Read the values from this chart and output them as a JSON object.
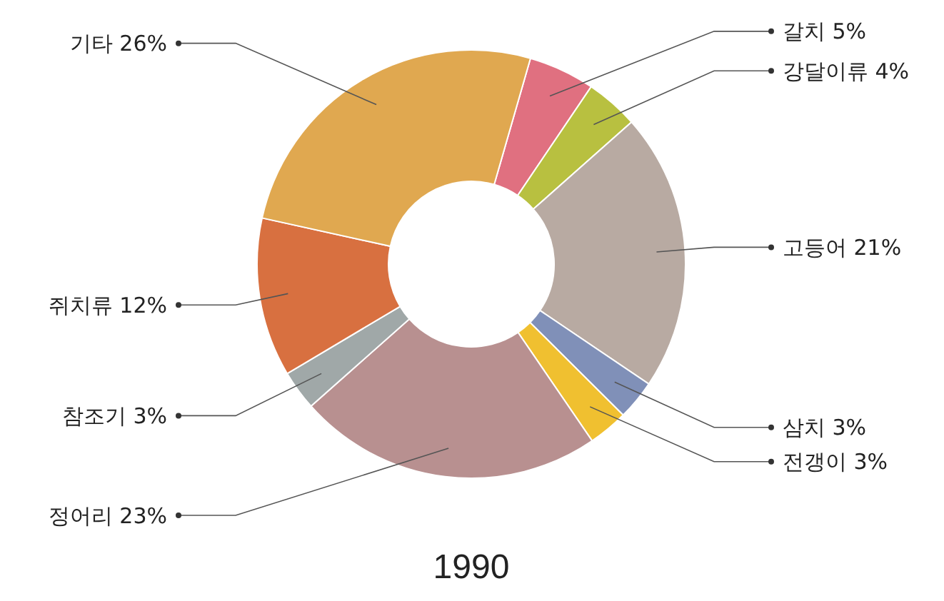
{
  "chart_data": {
    "type": "donut",
    "title": "1990",
    "categories": [
      "갈치",
      "강달이류",
      "고등어",
      "삼치",
      "전갱이",
      "정어리",
      "참조기",
      "쥐치류",
      "기타"
    ],
    "values": [
      5,
      4,
      21,
      3,
      3,
      23,
      3,
      12,
      26
    ],
    "value_labels": [
      "5%",
      "4%",
      "21%",
      "3%",
      "3%",
      "23%",
      "3%",
      "12%",
      "26%"
    ],
    "colors": [
      "#e07080",
      "#b8c040",
      "#b8aaa2",
      "#8090b8",
      "#f0c030",
      "#b89090",
      "#a0a8a8",
      "#d87040",
      "#e0a850"
    ]
  }
}
